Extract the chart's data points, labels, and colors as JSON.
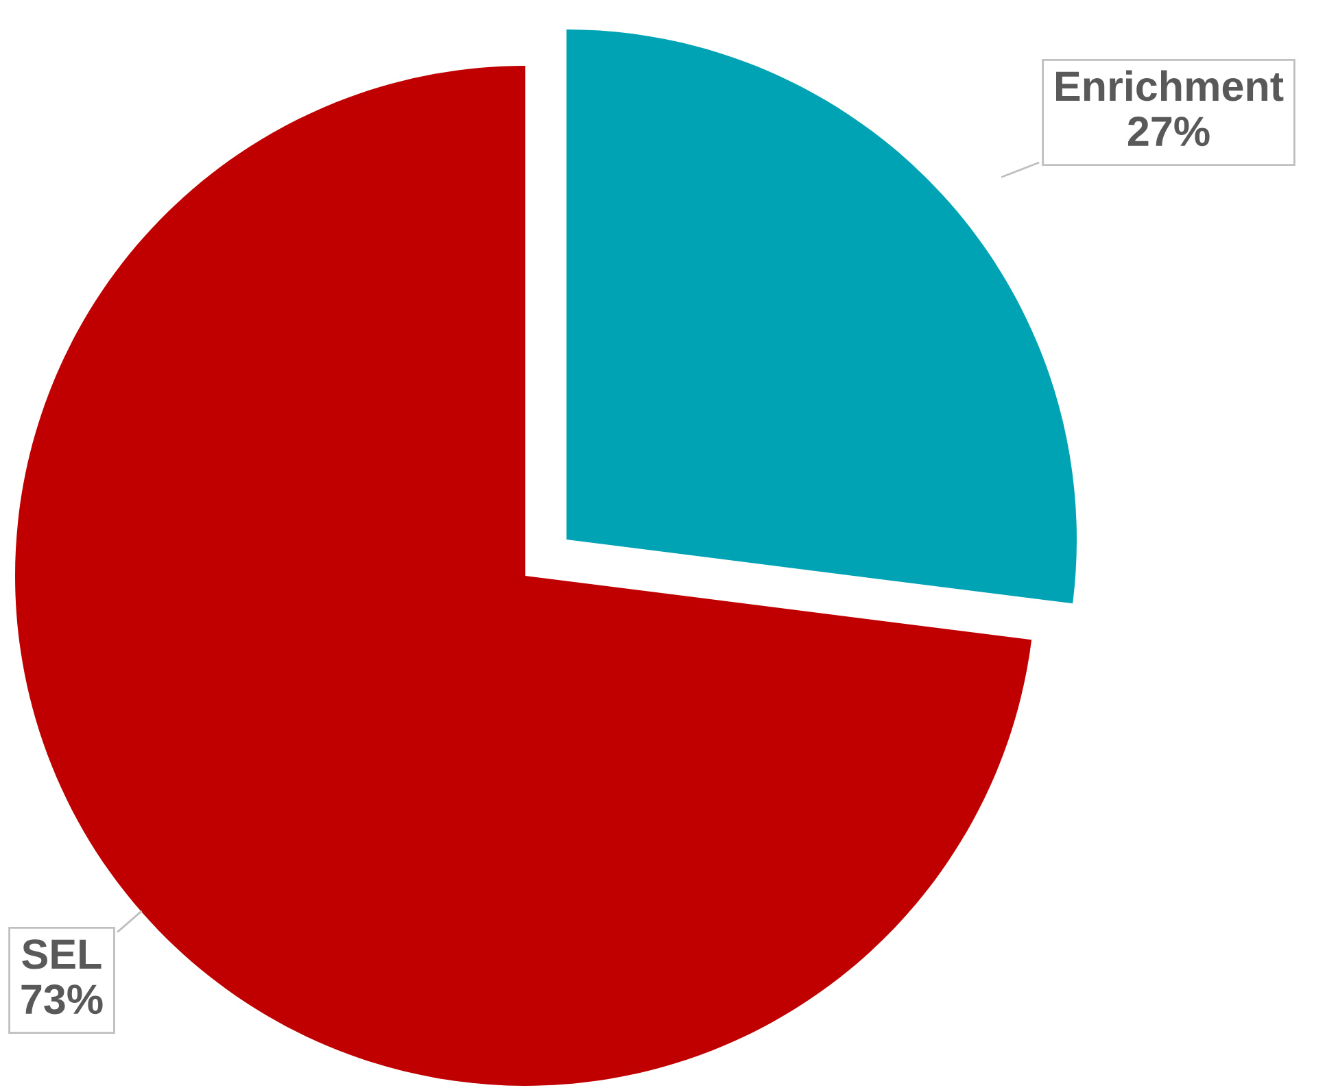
{
  "chart_data": {
    "type": "pie",
    "categories": [
      "Enrichment",
      "SEL"
    ],
    "values": [
      27,
      73
    ],
    "colors": [
      "#00a3b4",
      "#c00000"
    ],
    "value_labels": [
      "27%",
      "73%"
    ]
  }
}
